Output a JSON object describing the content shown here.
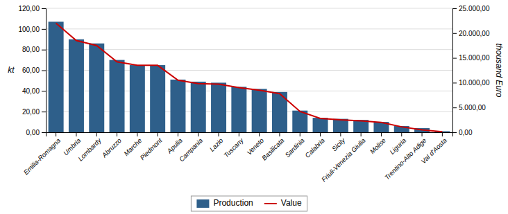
{
  "chart_data": {
    "type": "bar",
    "categories": [
      "Emilia-Romagna",
      "Umbria",
      "Lombardy",
      "Abruzzo",
      "Marche",
      "Piedmont",
      "Apulia",
      "Campania",
      "Lazio",
      "Tuscany",
      "Veneto",
      "Basilicata",
      "Sardinia",
      "Calabria",
      "Sicily",
      "Friuli-Venezia Giulia",
      "Molise",
      "Liguria",
      "Trentino-Alto Adige",
      "Val d'Aosta"
    ],
    "series": [
      {
        "name": "Production",
        "type": "bar",
        "color": "#2E5F8A",
        "values": [
          107,
          90,
          86,
          70,
          65,
          65,
          51,
          49,
          48,
          44,
          42,
          39,
          21,
          14,
          13,
          12,
          10,
          6,
          4,
          1
        ]
      },
      {
        "name": "Value",
        "type": "line",
        "axis": "y2",
        "color": "#CC0000",
        "values": [
          22000,
          18500,
          17500,
          14200,
          13500,
          13500,
          10500,
          9800,
          9700,
          9000,
          8500,
          7800,
          4200,
          2800,
          2500,
          2300,
          2000,
          1100,
          500,
          100
        ]
      }
    ],
    "ylabel": "kt",
    "y2label": "thousand Euro",
    "ylim": [
      0,
      120
    ],
    "yticks": [
      {
        "value": 0,
        "label": "0,00"
      },
      {
        "value": 20,
        "label": "20,00"
      },
      {
        "value": 40,
        "label": "40,00"
      },
      {
        "value": 60,
        "label": "60,00"
      },
      {
        "value": 80,
        "label": "80,00"
      },
      {
        "value": 100,
        "label": "100,00"
      },
      {
        "value": 120,
        "label": "120,00"
      }
    ],
    "y2lim": [
      0,
      25000
    ],
    "y2ticks": [
      {
        "value": 0,
        "label": "0,00"
      },
      {
        "value": 5000,
        "label": "5.000,00"
      },
      {
        "value": 10000,
        "label": "10.000,00"
      },
      {
        "value": 15000,
        "label": "15.000,00"
      },
      {
        "value": 20000,
        "label": "20.000,00"
      },
      {
        "value": 25000,
        "label": "25.000,00"
      }
    ],
    "grid": true,
    "legend": "bottom"
  }
}
